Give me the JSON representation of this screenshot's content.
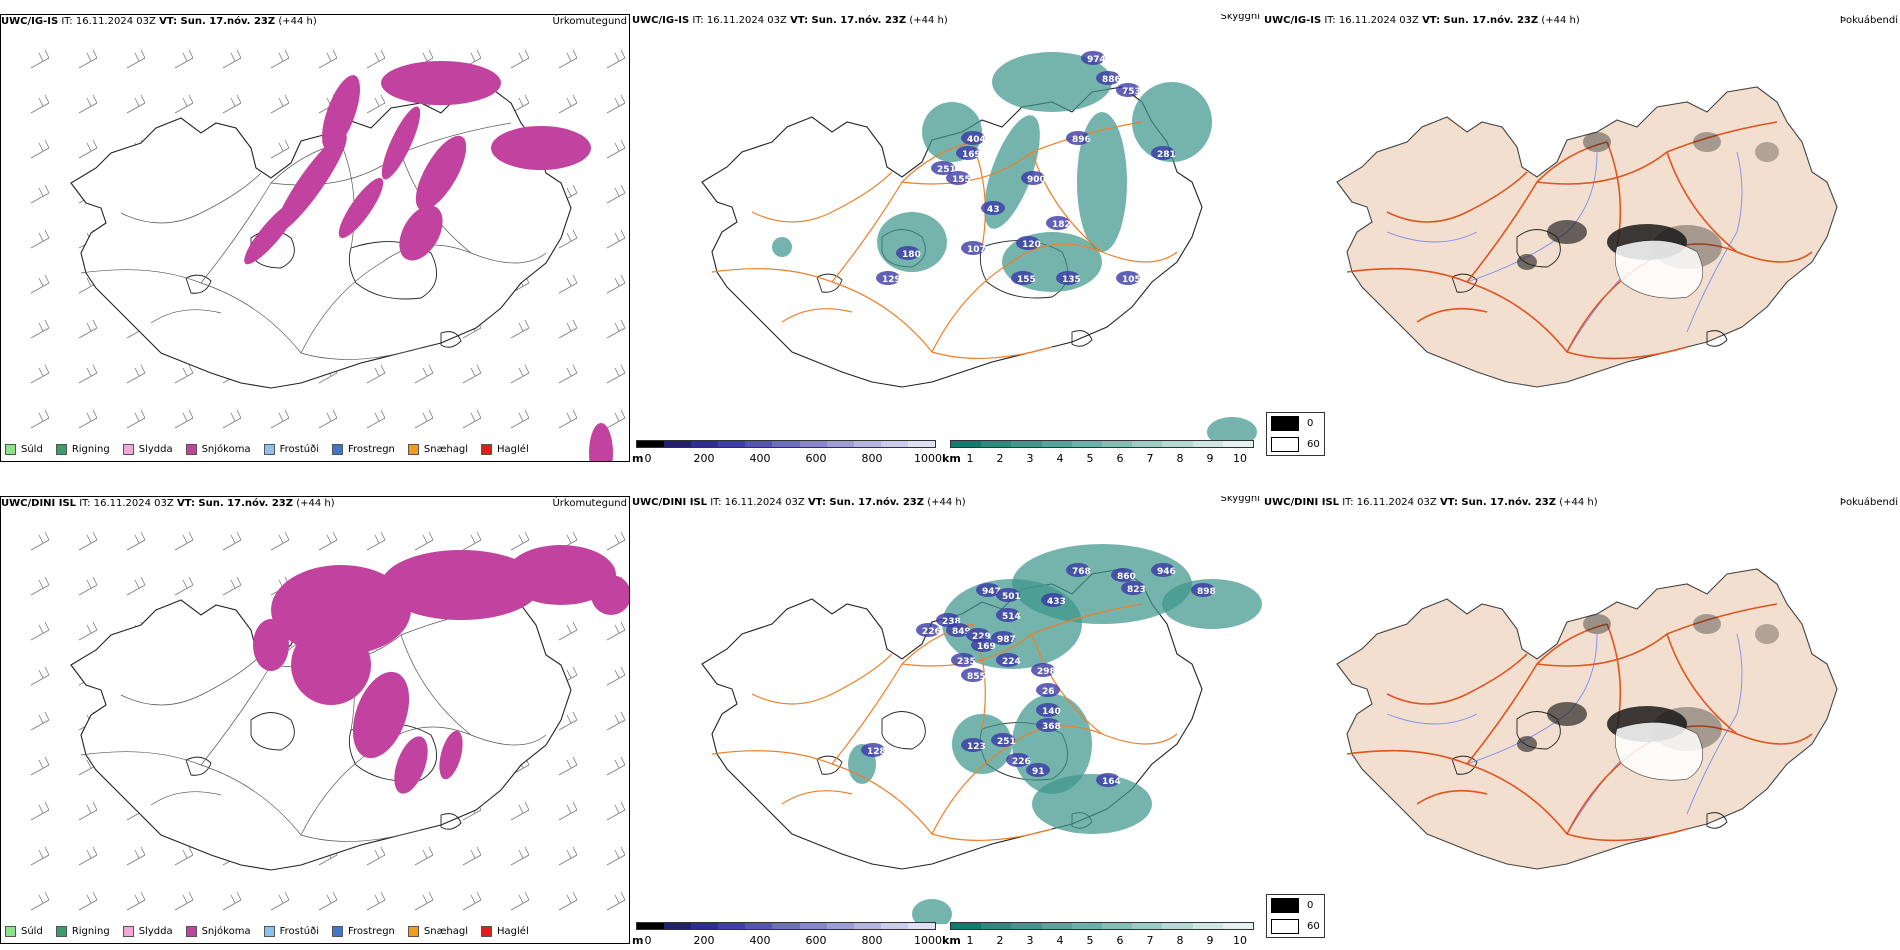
{
  "rows": [
    {
      "model": "UWC/IG-IS",
      "it": "IT: 16.11.2024 03Z",
      "vt": "VT: Sun. 17.nóv. 23Z",
      "lead": "(+44 h)",
      "precip_title": "Úrkomutegund",
      "cloud_title": "Skyggni",
      "fog_title": "Þokuábendi",
      "cloud_labels": [
        "974",
        "886",
        "753",
        "404",
        "169",
        "251",
        "155",
        "900",
        "896",
        "281",
        "43",
        "182",
        "180",
        "107",
        "120",
        "129",
        "155",
        "135",
        "105"
      ]
    },
    {
      "model": "UWC/DINI ISL",
      "it": "IT: 16.11.2024 03Z",
      "vt": "VT: Sun. 17.nóv. 23Z",
      "lead": "(+44 h)",
      "precip_title": "Úrkomutegund",
      "cloud_title": "Skyggni",
      "fog_title": "Þokuábendi",
      "cloud_labels": [
        "768",
        "860",
        "946",
        "898",
        "823",
        "947",
        "501",
        "433",
        "238",
        "226",
        "849",
        "229",
        "514",
        "987",
        "169",
        "235",
        "224",
        "298",
        "855",
        "26",
        "140",
        "368",
        "251",
        "123",
        "128",
        "226",
        "91",
        "164"
      ]
    }
  ],
  "precip_legend": [
    {
      "label": "Súld",
      "color": "#8ce28c"
    },
    {
      "label": "Rigning",
      "color": "#3e9b70"
    },
    {
      "label": "Slydda",
      "color": "#f2a9d8"
    },
    {
      "label": "Snjókoma",
      "color": "#c2429f"
    },
    {
      "label": "Frostúði",
      "color": "#8ec0ee"
    },
    {
      "label": "Frostregn",
      "color": "#3f76c9"
    },
    {
      "label": "Snæhagl",
      "color": "#f39a1f"
    },
    {
      "label": "Haglél",
      "color": "#e21b1b"
    }
  ],
  "height_bar": {
    "unit": "m",
    "ticks": [
      "0",
      "200",
      "400",
      "600",
      "800",
      "1000"
    ],
    "colors": [
      "#000000",
      "#20206e",
      "#2d2d94",
      "#3f3fa8",
      "#5555b4",
      "#6e6ec1",
      "#8686cc",
      "#9e9ed7",
      "#b5b5e2",
      "#cbcbec",
      "#e0e0f5"
    ]
  },
  "vis_bar": {
    "unit": "km",
    "ticks": [
      "1",
      "2",
      "3",
      "4",
      "5",
      "6",
      "7",
      "8",
      "9",
      "10"
    ],
    "colors": [
      "#137a70",
      "#2c8a80",
      "#3f978d",
      "#55a49a",
      "#6bb1a8",
      "#84bfb6",
      "#9dccc5",
      "#b6d9d3",
      "#cfe6e2",
      "#e6f2f0"
    ]
  },
  "fog_bar": {
    "labels": [
      "0",
      "60"
    ],
    "colors": [
      "#000000",
      "#ffffff"
    ]
  },
  "colors": {
    "snow": "#c2429f",
    "teal": "#3f978d",
    "roads": "#ef7f2a",
    "fog_land": "#f2dfcf",
    "fog_roads": "#e0541e",
    "rivers": "#7c8ef0"
  }
}
